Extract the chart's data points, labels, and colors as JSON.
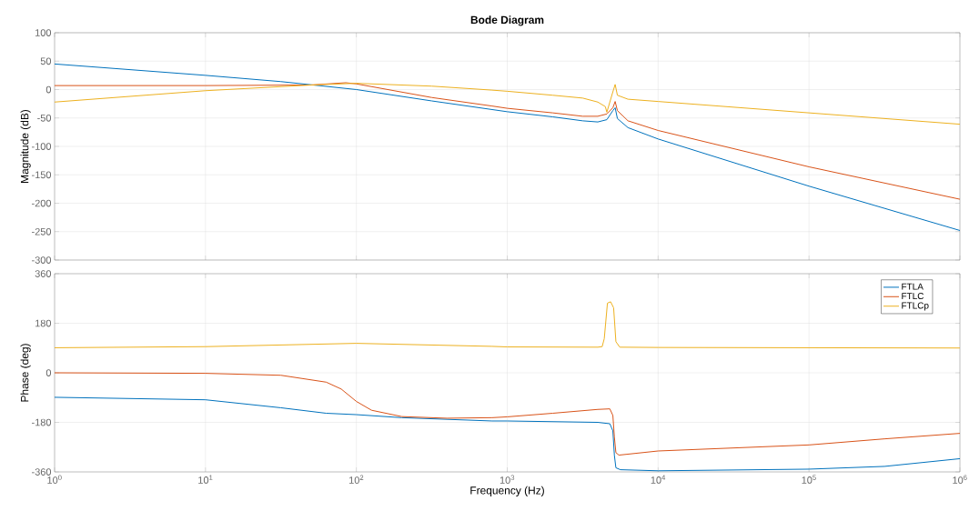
{
  "chart_data": [
    {
      "type": "line",
      "title": "Bode Diagram",
      "ylabel": "Magnitude (dB)",
      "log": "x",
      "grid": true,
      "tick_labels": "y",
      "xlim": [
        1,
        1000000
      ],
      "xticks": [
        1,
        10,
        100,
        1000,
        10000,
        100000,
        1000000
      ],
      "ylim": [
        -300,
        100
      ],
      "yticks": [
        -300,
        -250,
        -200,
        -150,
        -100,
        -50,
        0,
        50,
        100
      ],
      "series": [
        {
          "color": "#0072bd",
          "x": [
            1,
            10,
            31.6,
            100,
            316,
            1000,
            2000,
            3162,
            3981,
            4571,
            5012,
            5190,
            5370,
            6310,
            10000,
            100000,
            1000000
          ],
          "values": [
            45,
            25,
            14,
            0,
            -20,
            -39,
            -48,
            -55,
            -57,
            -53,
            -37,
            -32,
            -51,
            -67,
            -87,
            -170,
            -248
          ]
        },
        {
          "color": "#d95319",
          "x": [
            1,
            10,
            50,
            85,
            100,
            316,
            794,
            1000,
            2000,
            3162,
            3981,
            4571,
            5012,
            5190,
            5370,
            6310,
            10000,
            100000,
            1000000
          ],
          "values": [
            7,
            7,
            8,
            12,
            10,
            -14,
            -29,
            -33,
            -41,
            -47,
            -47,
            -43,
            -32,
            -21,
            -37,
            -55,
            -72,
            -136,
            -193
          ]
        },
        {
          "color": "#edb120",
          "x": [
            1,
            10,
            50,
            100,
            316,
            794,
            1000,
            2000,
            3162,
            3981,
            4467,
            4571,
            5012,
            5190,
            5370,
            6310,
            10000,
            100000,
            1000000
          ],
          "values": [
            -22,
            -2,
            8,
            11,
            6,
            -1,
            -3,
            -10,
            -15,
            -22,
            -30,
            -40,
            -4,
            9,
            -10,
            -17,
            -21,
            -41,
            -61
          ]
        }
      ]
    },
    {
      "type": "line",
      "xlabel": "Frequency  (Hz)",
      "ylabel": "Phase (deg)",
      "log": "x",
      "grid": true,
      "legend": "top right",
      "xlim": [
        1,
        1000000
      ],
      "xticks": [
        {
          "value": 1,
          "label": "10$^{0}$"
        },
        {
          "value": 10,
          "label": "10$^{1}$"
        },
        {
          "value": 100,
          "label": "10$^{2}$"
        },
        {
          "value": 1000,
          "label": "10$^{3}$"
        },
        {
          "value": 10000,
          "label": "10$^{4}$"
        },
        {
          "value": 100000,
          "label": "10$^{5}$"
        },
        {
          "value": 1000000,
          "label": "10$^{6}$"
        }
      ],
      "ylim": [
        -360,
        360
      ],
      "yticks": [
        -360,
        -180,
        0,
        180,
        360
      ],
      "series": [
        {
          "name": "FTLA",
          "color": "#0072bd",
          "x": [
            1,
            10,
            31.6,
            63.1,
            100,
            200,
            794,
            1000,
            3981,
            4786,
            5012,
            5129,
            5248,
            5623,
            10000,
            100000,
            316228,
            1000000
          ],
          "values": [
            -89,
            -98,
            -127,
            -147,
            -152,
            -163,
            -175,
            -175,
            -180,
            -185,
            -211,
            -300,
            -345,
            -352,
            -356,
            -350,
            -340,
            -312
          ]
        },
        {
          "name": "FTLC",
          "color": "#d95319",
          "x": [
            1,
            10,
            31.6,
            63.1,
            79.4,
            100,
            126,
            200,
            398,
            794,
            1000,
            2000,
            3981,
            4786,
            5012,
            5129,
            5248,
            5495,
            10000,
            100000,
            316228,
            1000000
          ],
          "values": [
            0,
            -2,
            -9,
            -34,
            -59,
            -104,
            -136,
            -159,
            -165,
            -163,
            -160,
            -147,
            -133,
            -131,
            -155,
            -234,
            -290,
            -299,
            -284,
            -262,
            -240,
            -220
          ]
        },
        {
          "name": "FTLCp",
          "color": "#edb120",
          "x": [
            1,
            10,
            100,
            794,
            1000,
            3981,
            4256,
            4395,
            4613,
            4842,
            5070,
            5250,
            5570,
            10000,
            1000000
          ],
          "values": [
            91,
            95,
            107,
            96,
            94,
            93,
            95,
            124,
            253,
            258,
            236,
            113,
            93,
            92,
            90
          ]
        }
      ]
    }
  ]
}
